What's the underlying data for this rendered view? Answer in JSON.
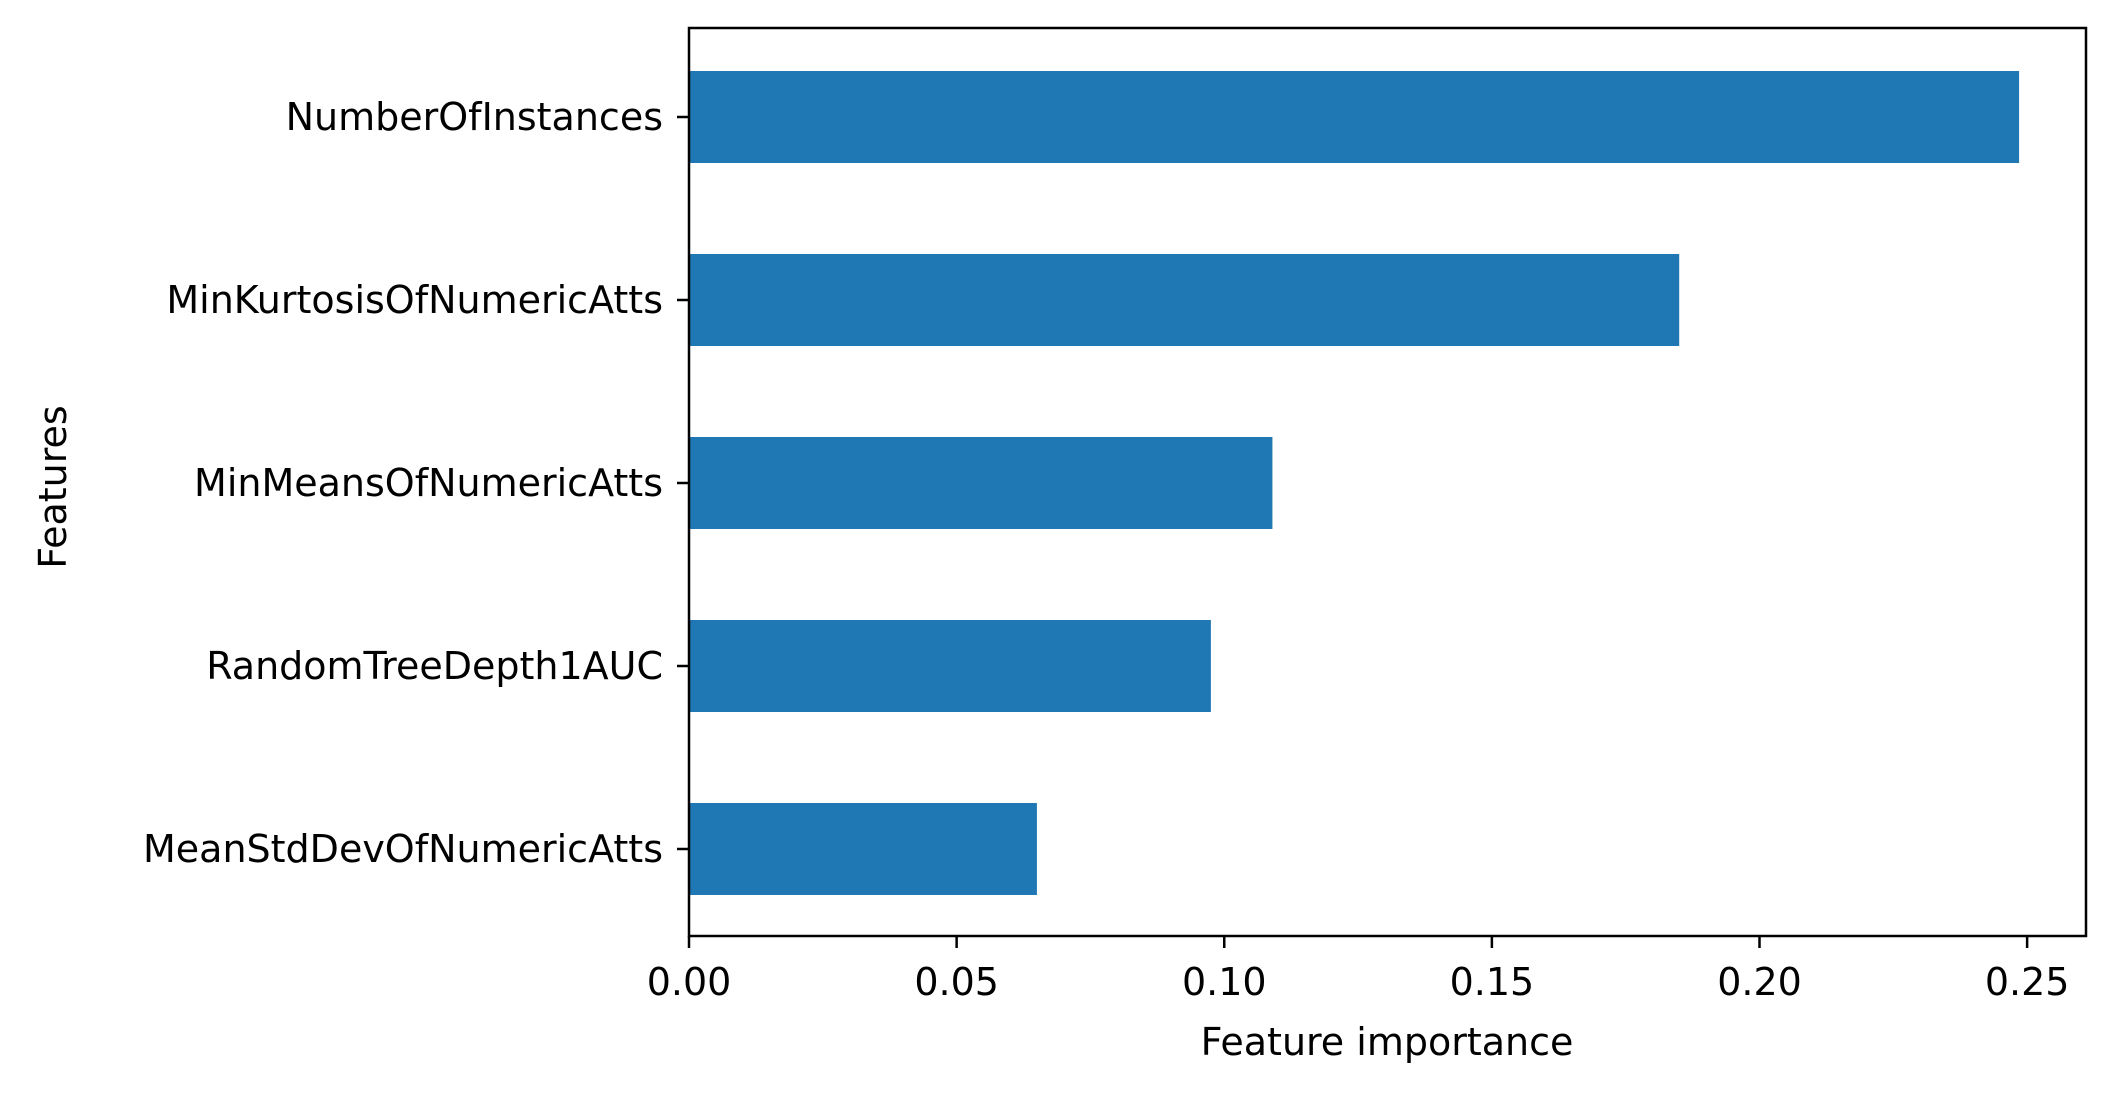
{
  "chart_data": {
    "type": "bar",
    "orientation": "horizontal",
    "xlabel": "Feature importance",
    "ylabel": "Features",
    "xlim": [
      0,
      0.261
    ],
    "xticks": [
      0.0,
      0.05,
      0.1,
      0.15,
      0.2,
      0.25
    ],
    "xtick_labels": [
      "0.00",
      "0.05",
      "0.10",
      "0.15",
      "0.20",
      "0.25"
    ],
    "grid": false,
    "bar_color": "#1f77b4",
    "categories": [
      "NumberOfInstances",
      "MinKurtosisOfNumericAtts",
      "MinMeansOfNumericAtts",
      "RandomTreeDepth1AUC",
      "MeanStdDevOfNumericAtts"
    ],
    "values": [
      0.2485,
      0.185,
      0.109,
      0.0975,
      0.065
    ]
  }
}
